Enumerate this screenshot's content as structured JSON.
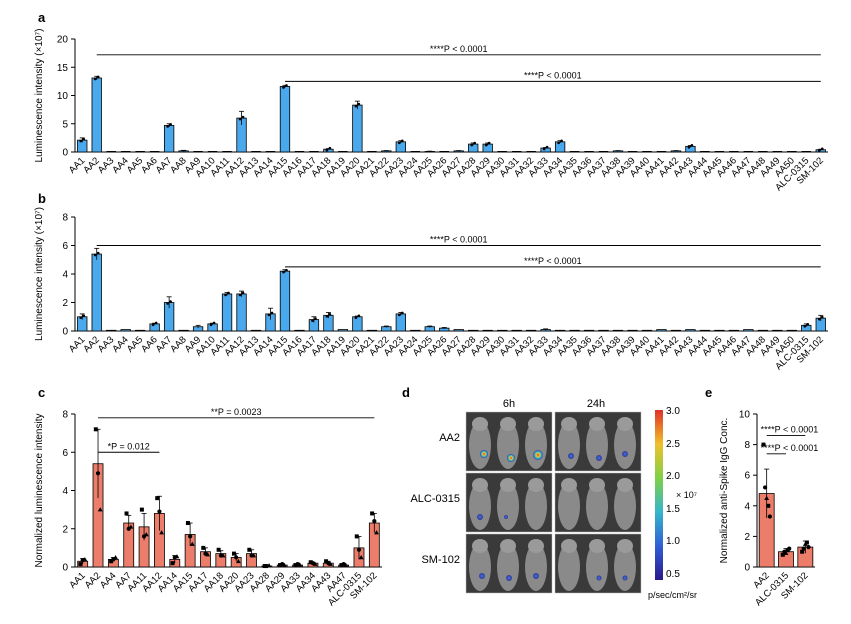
{
  "colors": {
    "blue": "#4aa8ec",
    "red": "#ec7d6a",
    "axis": "#000000",
    "dot": "#000000"
  },
  "panels": {
    "a": "a",
    "b": "b",
    "c": "c",
    "d": "d",
    "e": "e"
  },
  "chart_data": [
    {
      "id": "a",
      "type": "bar",
      "ylabel": "Luminescence intensity (×10⁷)",
      "ylim": [
        0,
        20
      ],
      "yticks": [
        0,
        5,
        10,
        15,
        20
      ],
      "categories": [
        "AA1",
        "AA2",
        "AA3",
        "AA4",
        "AA5",
        "AA6",
        "AA7",
        "AA8",
        "AA9",
        "AA10",
        "AA11",
        "AA12",
        "AA13",
        "AA14",
        "AA15",
        "AA16",
        "AA17",
        "AA18",
        "AA19",
        "AA20",
        "AA21",
        "AA22",
        "AA23",
        "AA24",
        "AA25",
        "AA26",
        "AA27",
        "AA28",
        "AA29",
        "AA30",
        "AA31",
        "AA32",
        "AA33",
        "AA34",
        "AA35",
        "AA36",
        "AA37",
        "AA38",
        "AA39",
        "AA40",
        "AA41",
        "AA42",
        "AA43",
        "AA44",
        "AA45",
        "AA46",
        "AA47",
        "AA48",
        "AA49",
        "AA50",
        "ALC-0315",
        "SM-102"
      ],
      "values": [
        2.1,
        13.1,
        0,
        0,
        0,
        0,
        4.7,
        0.2,
        0,
        0,
        0,
        6.0,
        0,
        0,
        11.6,
        0,
        0,
        0.5,
        0,
        8.3,
        0,
        0.2,
        1.8,
        0,
        0.1,
        0,
        0.2,
        1.4,
        1.4,
        0,
        0,
        0,
        0.7,
        1.8,
        0,
        0,
        0,
        0.2,
        0,
        0,
        0,
        0.2,
        1.0,
        0,
        0,
        0,
        0,
        0,
        0,
        0,
        0,
        0.4
      ],
      "errors": [
        0.4,
        0.3,
        0,
        0,
        0,
        0,
        0.3,
        0.1,
        0,
        0,
        0,
        1.2,
        0,
        0,
        0.2,
        0,
        0,
        0.1,
        0,
        0.7,
        0,
        0.05,
        0.2,
        0,
        0.05,
        0,
        0.05,
        0.2,
        0.2,
        0,
        0,
        0,
        0.1,
        0.2,
        0,
        0,
        0,
        0.05,
        0,
        0,
        0,
        0.05,
        0.15,
        0,
        0,
        0,
        0,
        0,
        0,
        0,
        0,
        0.1
      ],
      "annotations": [
        {
          "text": "****P < 0.0001",
          "from": "AA2",
          "to": "SM-102",
          "y": 17.2
        },
        {
          "text": "****P < 0.0001",
          "from": "AA15",
          "to": "SM-102",
          "y": 12.5
        }
      ]
    },
    {
      "id": "b",
      "type": "bar",
      "ylabel": "Luminescence intensity (×10⁷)",
      "ylim": [
        0,
        8
      ],
      "yticks": [
        0,
        2,
        4,
        6,
        8
      ],
      "categories": [
        "AA1",
        "AA2",
        "AA3",
        "AA4",
        "AA5",
        "AA6",
        "AA7",
        "AA8",
        "AA9",
        "AA10",
        "AA11",
        "AA12",
        "AA13",
        "AA14",
        "AA15",
        "AA16",
        "AA17",
        "AA18",
        "AA19",
        "AA20",
        "AA21",
        "AA22",
        "AA23",
        "AA24",
        "AA25",
        "AA26",
        "AA27",
        "AA28",
        "AA29",
        "AA30",
        "AA31",
        "AA32",
        "AA33",
        "AA34",
        "AA35",
        "AA36",
        "AA37",
        "AA38",
        "AA39",
        "AA40",
        "AA41",
        "AA42",
        "AA43",
        "AA44",
        "AA45",
        "AA46",
        "AA47",
        "AA48",
        "AA49",
        "AA50",
        "ALC-0315",
        "SM-102"
      ],
      "values": [
        1.0,
        5.4,
        0.05,
        0.1,
        0.05,
        0.5,
        2.0,
        0.05,
        0.3,
        0.5,
        2.6,
        2.6,
        0.05,
        1.2,
        4.2,
        0.05,
        0.8,
        1.1,
        0.1,
        1.0,
        0.05,
        0.3,
        1.2,
        0.05,
        0.3,
        0.2,
        0.1,
        0.05,
        0.05,
        0.05,
        0.05,
        0.05,
        0.1,
        0.05,
        0.05,
        0.05,
        0.05,
        0.05,
        0.05,
        0.05,
        0.1,
        0.05,
        0.1,
        0.05,
        0.05,
        0.05,
        0.1,
        0.05,
        0.05,
        0.05,
        0.4,
        0.9
      ],
      "errors": [
        0.2,
        0.4,
        0,
        0,
        0,
        0.05,
        0.4,
        0,
        0.1,
        0.05,
        0.1,
        0.2,
        0,
        0.4,
        0.1,
        0,
        0.2,
        0.2,
        0,
        0.05,
        0,
        0.05,
        0.1,
        0,
        0.05,
        0.05,
        0,
        0,
        0,
        0,
        0,
        0,
        0.05,
        0,
        0,
        0,
        0,
        0,
        0,
        0,
        0,
        0,
        0,
        0,
        0,
        0,
        0,
        0,
        0,
        0,
        0.1,
        0.2
      ],
      "annotations": [
        {
          "text": "****P < 0.0001",
          "from": "AA2",
          "to": "SM-102",
          "y": 6.0
        },
        {
          "text": "****P < 0.0001",
          "from": "AA15",
          "to": "SM-102",
          "y": 4.5
        }
      ]
    },
    {
      "id": "c",
      "type": "bar",
      "ylabel": "Normalized luminescence intensity",
      "ylim": [
        0,
        8
      ],
      "yticks": [
        0,
        2,
        4,
        6,
        8
      ],
      "categories": [
        "AA1",
        "AA2",
        "AA4",
        "AA7",
        "AA11",
        "AA12",
        "AA14",
        "AA15",
        "AA17",
        "AA18",
        "AA20",
        "AA23",
        "AA28",
        "AA29",
        "AA33",
        "AA34",
        "AA43",
        "AA47",
        "ALC-0315",
        "SM-102"
      ],
      "values": [
        0.3,
        5.4,
        0.4,
        2.3,
        2.1,
        2.8,
        0.4,
        1.7,
        0.8,
        0.7,
        0.5,
        0.7,
        0.05,
        0.1,
        0.1,
        0.2,
        0.2,
        0.1,
        1.0,
        2.3
      ],
      "errors": [
        0.15,
        1.8,
        0.1,
        0.4,
        0.7,
        0.9,
        0.2,
        0.6,
        0.2,
        0.15,
        0.2,
        0.2,
        0.02,
        0.05,
        0.05,
        0.05,
        0.1,
        0.05,
        0.6,
        0.5
      ],
      "points": [
        [
          0.15,
          0.35,
          0.4
        ],
        [
          7.2,
          4.9,
          3.0
        ],
        [
          0.3,
          0.4,
          0.5
        ],
        [
          2.8,
          2.0,
          2.1
        ],
        [
          3.0,
          1.6,
          1.7
        ],
        [
          3.6,
          2.9,
          1.8
        ],
        [
          0.2,
          0.5,
          0.55
        ],
        [
          2.3,
          1.6,
          1.2
        ],
        [
          1.0,
          0.7,
          0.65
        ],
        [
          0.9,
          0.6,
          0.6
        ],
        [
          0.7,
          0.5,
          0.3
        ],
        [
          0.9,
          0.6,
          0.6
        ],
        [
          0.05,
          0.05,
          0.08
        ],
        [
          0.1,
          0.15,
          0.1
        ],
        [
          0.1,
          0.15,
          0.12
        ],
        [
          0.25,
          0.2,
          0.15
        ],
        [
          0.3,
          0.2,
          0.15
        ],
        [
          0.1,
          0.15,
          0.1
        ],
        [
          1.6,
          0.9,
          0.5
        ],
        [
          2.8,
          2.4,
          1.8
        ]
      ],
      "annotations": [
        {
          "text": "*P = 0.012",
          "from": "AA2",
          "to": "AA12",
          "y": 6.0
        },
        {
          "text": "**P = 0.0023",
          "from": "AA2",
          "to": "SM-102",
          "y": 7.8
        }
      ]
    },
    {
      "id": "e",
      "type": "bar",
      "ylabel": "Normalized anti-Spike IgG Conc.",
      "ylim": [
        0,
        10
      ],
      "yticks": [
        0,
        2,
        4,
        6,
        8,
        10
      ],
      "categories": [
        "AA2",
        "ALC-0315",
        "SM-102"
      ],
      "values": [
        4.8,
        1.0,
        1.3
      ],
      "errors": [
        1.6,
        0.2,
        0.4
      ],
      "points": [
        [
          8.0,
          5.2,
          4.5,
          4.0,
          3.3
        ],
        [
          0.8,
          1.0,
          0.9,
          1.1,
          1.2
        ],
        [
          1.0,
          1.2,
          1.5,
          1.6,
          1.3
        ]
      ],
      "annotations": [
        {
          "text": "****P < 0.0001",
          "from": "AA2",
          "to": "SM-102",
          "y": 8.6
        },
        {
          "text": "****P < 0.0001",
          "from": "AA2",
          "to": "ALC-0315",
          "y": 7.4
        }
      ]
    }
  ],
  "imaging": {
    "time_labels": [
      "6h",
      "24h"
    ],
    "row_labels": [
      "AA2",
      "ALC-0315",
      "SM-102"
    ],
    "scale_ticks": [
      "3.0",
      "2.5",
      "2.0",
      "1.5",
      "1.0",
      "0.5"
    ],
    "scale_exponent": "× 10⁷",
    "scale_unit": "p/sec/cm²/sr"
  }
}
